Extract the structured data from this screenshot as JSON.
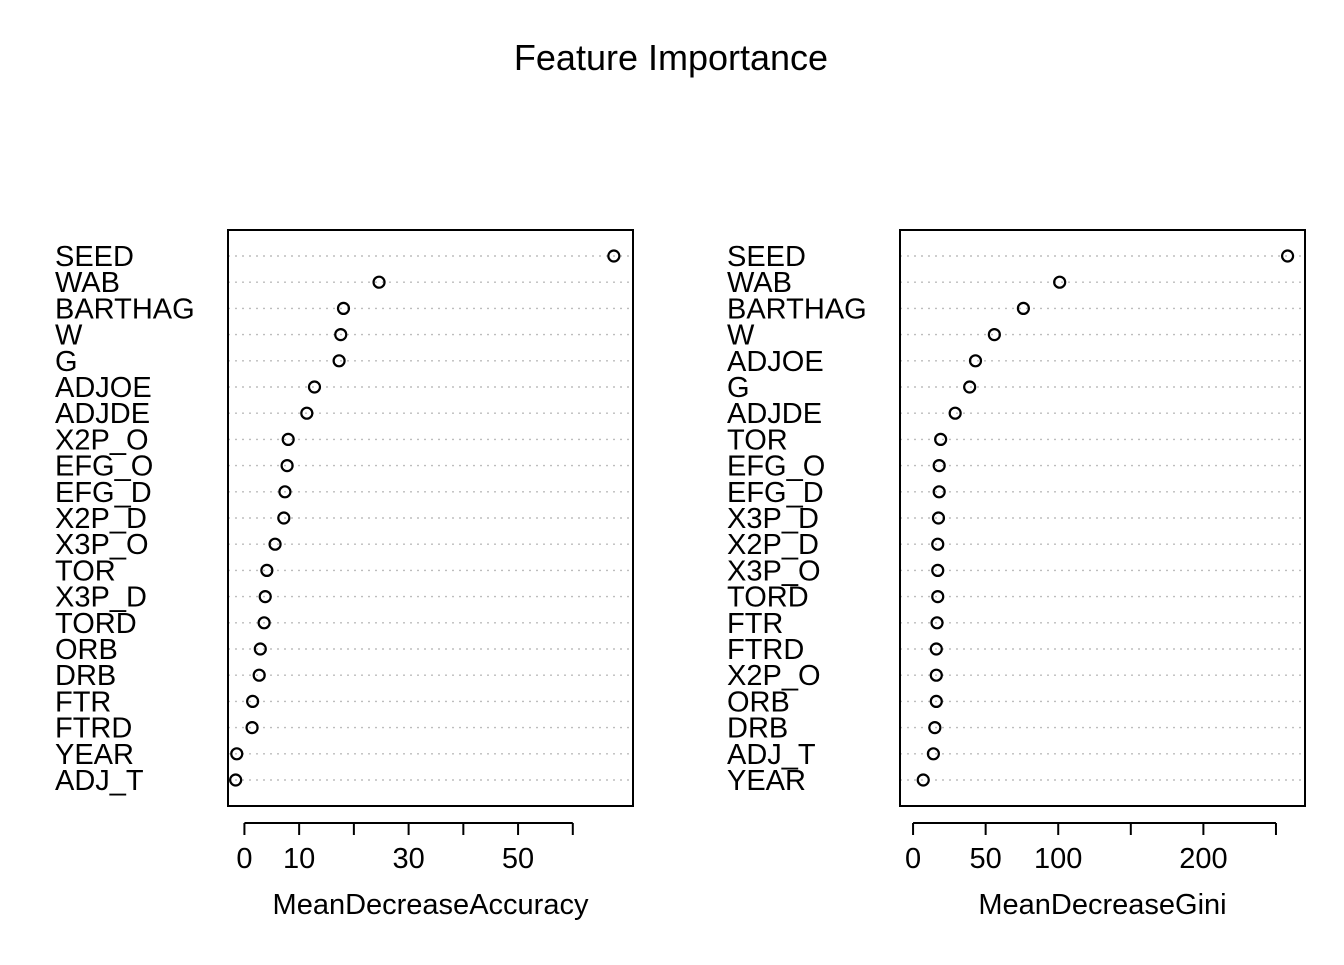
{
  "title": "Feature Importance",
  "chart_data": [
    {
      "type": "scatter",
      "xlabel": "MeanDecreaseAccuracy",
      "ylabel": "",
      "xlim": [
        -3,
        71
      ],
      "xticks": [
        0,
        10,
        30,
        50
      ],
      "tick_marks": [
        0,
        10,
        20,
        30,
        40,
        50,
        60
      ],
      "grid": true,
      "labels": [
        "SEED",
        "WAB",
        "BARTHAG",
        "W",
        "G",
        "ADJOE",
        "ADJDE",
        "X2P_O",
        "EFG_O",
        "EFG_D",
        "X2P_D",
        "X3P_O",
        "TOR",
        "X3P_D",
        "TORD",
        "ORB",
        "DRB",
        "FTR",
        "FTRD",
        "YEAR",
        "ADJ_T"
      ],
      "values": [
        67.5,
        24.6,
        18.1,
        17.6,
        17.3,
        12.8,
        11.4,
        8.0,
        7.8,
        7.4,
        7.2,
        5.6,
        4.1,
        3.8,
        3.6,
        2.9,
        2.7,
        1.5,
        1.4,
        -1.4,
        -1.6
      ]
    },
    {
      "type": "scatter",
      "xlabel": "MeanDecreaseGini",
      "ylabel": "",
      "xlim": [
        -9,
        270
      ],
      "xticks": [
        0,
        50,
        100,
        200
      ],
      "tick_marks": [
        0,
        50,
        100,
        150,
        200,
        250
      ],
      "grid": true,
      "labels": [
        "SEED",
        "WAB",
        "BARTHAG",
        "W",
        "ADJOE",
        "G",
        "ADJDE",
        "TOR",
        "EFG_O",
        "EFG_D",
        "X3P_D",
        "X2P_D",
        "X3P_O",
        "TORD",
        "FTR",
        "FTRD",
        "X2P_O",
        "ORB",
        "DRB",
        "ADJ_T",
        "YEAR"
      ],
      "values": [
        258,
        101,
        76,
        56,
        43,
        39,
        29,
        19,
        18,
        18,
        17.5,
        17,
        17,
        17,
        16.5,
        16,
        16,
        16,
        15,
        14,
        7
      ]
    }
  ]
}
